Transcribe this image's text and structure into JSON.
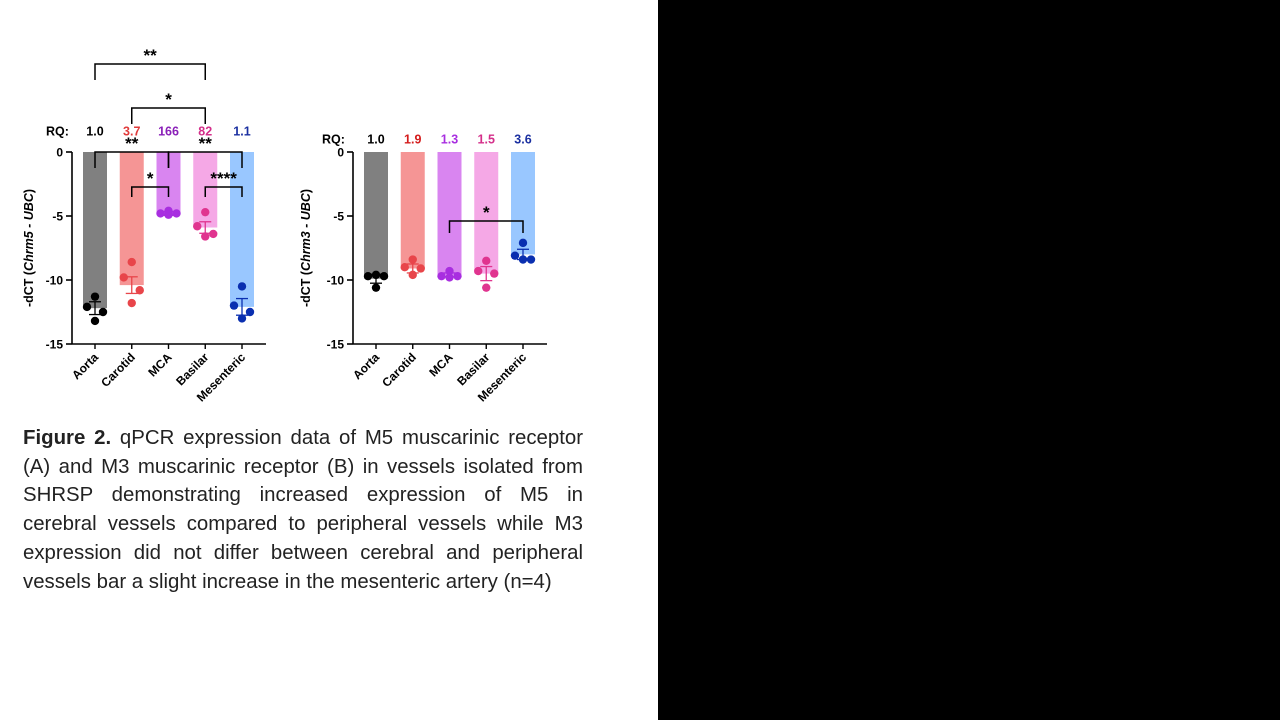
{
  "caption": {
    "label": "Figure 2.",
    "text": " qPCR expression data of M5 muscarinic receptor (A) and M3 muscarinic receptor (B) in vessels isolated from SHRSP demonstrating increased expression of M5 in cerebral vessels compared to peripheral vessels while M3 expression did not differ between cerebral and peripheral vessels bar a slight increase in the mesenteric artery (n=4)"
  },
  "colors": {
    "right_panel": "#000000",
    "caption_text": "#222222"
  },
  "chart_data": [
    {
      "type": "bar",
      "title": "",
      "ylabel_prefix": "-dCT  (",
      "ylabel_gene": "Chrm5 - UBC",
      "ylabel_suffix": ")",
      "ylim": [
        -15,
        0
      ],
      "yticks": [
        0,
        -5,
        -10,
        -15
      ],
      "categories": [
        "Aorta",
        "Carotid",
        "MCA",
        "Basilar",
        "Mesenteric"
      ],
      "values": [
        -12.2,
        -10.4,
        -4.8,
        -5.9,
        -12.1
      ],
      "errors": [
        0.5,
        0.65,
        0.15,
        0.45,
        0.65
      ],
      "points": [
        [
          -11.3,
          -12.1,
          -12.5,
          -13.2
        ],
        [
          -8.6,
          -9.8,
          -10.8,
          -11.8
        ],
        [
          -4.6,
          -4.8,
          -4.8,
          -4.9
        ],
        [
          -4.7,
          -5.8,
          -6.4,
          -6.6
        ],
        [
          -10.5,
          -12.0,
          -12.5,
          -13.0
        ]
      ],
      "bar_colors": [
        "#808080",
        "#f59595",
        "#d985f0",
        "#f5a8e6",
        "#99c7ff"
      ],
      "point_colors": [
        "#000000",
        "#e8454a",
        "#a82ee0",
        "#e0348f",
        "#0a2fb0"
      ],
      "rq_label": "RQ:",
      "rq_values": [
        "1.0",
        "3.7",
        "166",
        "82",
        "1.1"
      ],
      "rq_colors": [
        "#000000",
        "#e03a3a",
        "#8a1fb8",
        "#d42f8a",
        "#1a2fa0"
      ],
      "significance": [
        {
          "from": 0,
          "to": 3,
          "label": "**",
          "level": 2
        },
        {
          "from": 1,
          "to": 3,
          "label": "*",
          "level": 1
        },
        {
          "from": 0,
          "to": 2,
          "label": "**",
          "level": 0
        },
        {
          "from": 2,
          "to": 4,
          "label": "**",
          "level": 0
        },
        {
          "from": 1,
          "to": 2,
          "label": "*",
          "level": -1
        },
        {
          "from": 3,
          "to": 4,
          "label": "****",
          "level": -1
        }
      ]
    },
    {
      "type": "bar",
      "title": "",
      "ylabel_prefix": "-dCT  (",
      "ylabel_gene": "Chrm3 - UBC",
      "ylabel_suffix": ")",
      "ylim": [
        -15,
        0
      ],
      "yticks": [
        0,
        -5,
        -10,
        -15
      ],
      "categories": [
        "Aorta",
        "Carotid",
        "MCA",
        "Basilar",
        "Mesenteric"
      ],
      "values": [
        -9.9,
        -9.1,
        -9.6,
        -9.5,
        -8.0
      ],
      "errors": [
        0.35,
        0.35,
        0.15,
        0.55,
        0.4
      ],
      "points": [
        [
          -9.6,
          -9.7,
          -9.7,
          -10.6
        ],
        [
          -8.4,
          -9.0,
          -9.1,
          -9.6
        ],
        [
          -9.3,
          -9.7,
          -9.7,
          -9.8
        ],
        [
          -8.5,
          -9.3,
          -9.5,
          -10.6
        ],
        [
          -7.1,
          -8.1,
          -8.4,
          -8.4
        ]
      ],
      "bar_colors": [
        "#808080",
        "#f59595",
        "#d985f0",
        "#f5a8e6",
        "#99c7ff"
      ],
      "point_colors": [
        "#000000",
        "#e8454a",
        "#a82ee0",
        "#e0348f",
        "#0a2fb0"
      ],
      "rq_label": "RQ:",
      "rq_values": [
        "1.0",
        "1.9",
        "1.3",
        "1.5",
        "3.6"
      ],
      "rq_colors": [
        "#000000",
        "#d41c1c",
        "#a82ee0",
        "#d42f8a",
        "#1a2fa0"
      ],
      "significance": [
        {
          "from": 2,
          "to": 4,
          "label": "*",
          "level": 0
        }
      ]
    }
  ]
}
